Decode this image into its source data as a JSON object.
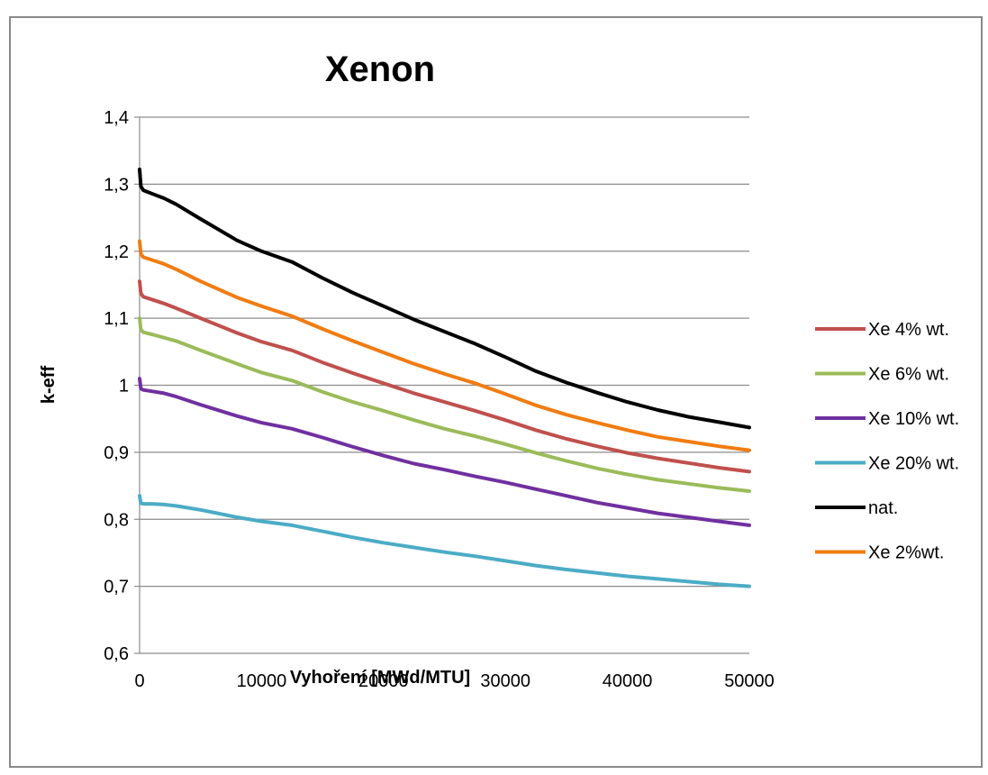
{
  "chart_data": {
    "type": "line",
    "title": "Xenon",
    "xlabel": "Vyhoření [MWd/MTU]",
    "ylabel": "k-eff",
    "xlim": [
      0,
      50000
    ],
    "ylim": [
      0.6,
      1.4
    ],
    "x_ticks": [
      "0",
      "10000",
      "20000",
      "30000",
      "40000",
      "50000"
    ],
    "y_ticks": [
      "0,6",
      "0,7",
      "0,8",
      "0,9",
      "1",
      "1,1",
      "1,2",
      "1,3",
      "1,4"
    ],
    "grid": "horizontal",
    "legend_position": "right",
    "x": [
      0,
      100,
      300,
      1000,
      2000,
      3000,
      5000,
      8000,
      10000,
      12500,
      15000,
      17500,
      20000,
      22500,
      25000,
      27500,
      30000,
      32500,
      35000,
      37500,
      40000,
      42500,
      45000,
      47500,
      50000
    ],
    "series": [
      {
        "name": "Xe 4% wt.",
        "color": "#c0504d",
        "x": [
          0,
          100,
          300,
          1000,
          2000,
          3000,
          5000,
          8000,
          10000,
          12500,
          15000,
          17500,
          20000,
          22500,
          25000,
          27500,
          30000,
          32500,
          35000,
          37500,
          40000,
          42500,
          45000,
          47500,
          50000
        ],
        "values": [
          1.155,
          1.137,
          1.132,
          1.128,
          1.122,
          1.115,
          1.1,
          1.078,
          1.065,
          1.052,
          1.034,
          1.018,
          1.003,
          0.988,
          0.975,
          0.962,
          0.948,
          0.933,
          0.92,
          0.909,
          0.899,
          0.891,
          0.884,
          0.877,
          0.871
        ]
      },
      {
        "name": "Xe 6% wt.",
        "color": "#9bbb59",
        "x": [
          0,
          100,
          300,
          1000,
          2000,
          3000,
          5000,
          8000,
          10000,
          12500,
          15000,
          17500,
          20000,
          22500,
          25000,
          27500,
          30000,
          32500,
          35000,
          37500,
          40000,
          42500,
          45000,
          47500,
          50000
        ],
        "values": [
          1.1,
          1.083,
          1.079,
          1.076,
          1.071,
          1.066,
          1.052,
          1.032,
          1.019,
          1.007,
          0.99,
          0.975,
          0.962,
          0.948,
          0.935,
          0.924,
          0.912,
          0.899,
          0.887,
          0.876,
          0.867,
          0.859,
          0.853,
          0.847,
          0.842
        ]
      },
      {
        "name": "Xe 10% wt.",
        "color": "#7030a0",
        "x": [
          0,
          100,
          300,
          1000,
          2000,
          3000,
          5000,
          8000,
          10000,
          12500,
          15000,
          17500,
          20000,
          22500,
          25000,
          27500,
          30000,
          32500,
          35000,
          37500,
          40000,
          42500,
          45000,
          47500,
          50000
        ],
        "values": [
          1.01,
          0.995,
          0.993,
          0.991,
          0.988,
          0.983,
          0.971,
          0.954,
          0.944,
          0.935,
          0.922,
          0.908,
          0.895,
          0.883,
          0.874,
          0.864,
          0.855,
          0.845,
          0.835,
          0.825,
          0.817,
          0.809,
          0.803,
          0.797,
          0.791
        ]
      },
      {
        "name": "Xe 20% wt.",
        "color": "#4bacc6",
        "x": [
          0,
          100,
          300,
          1000,
          2000,
          3000,
          5000,
          8000,
          10000,
          12500,
          15000,
          17500,
          20000,
          22500,
          25000,
          27500,
          30000,
          32500,
          35000,
          37500,
          40000,
          42500,
          45000,
          47500,
          50000
        ],
        "values": [
          0.835,
          0.824,
          0.823,
          0.823,
          0.822,
          0.82,
          0.814,
          0.803,
          0.797,
          0.791,
          0.782,
          0.773,
          0.765,
          0.758,
          0.751,
          0.745,
          0.738,
          0.731,
          0.725,
          0.72,
          0.715,
          0.711,
          0.707,
          0.703,
          0.7
        ]
      },
      {
        "name": "nat.",
        "color": "#000000",
        "x": [
          0,
          100,
          300,
          1000,
          2000,
          3000,
          5000,
          8000,
          10000,
          12500,
          15000,
          17500,
          20000,
          22500,
          25000,
          27500,
          30000,
          32500,
          35000,
          37500,
          40000,
          42500,
          45000,
          47500,
          50000
        ],
        "values": [
          1.322,
          1.297,
          1.291,
          1.286,
          1.279,
          1.27,
          1.248,
          1.216,
          1.2,
          1.184,
          1.16,
          1.138,
          1.118,
          1.098,
          1.08,
          1.062,
          1.042,
          1.021,
          1.004,
          0.989,
          0.975,
          0.963,
          0.953,
          0.945,
          0.937
        ]
      },
      {
        "name": "Xe 2%wt.",
        "color": "#f07c12",
        "x": [
          0,
          100,
          300,
          1000,
          2000,
          3000,
          5000,
          8000,
          10000,
          12500,
          15000,
          17500,
          20000,
          22500,
          25000,
          27500,
          30000,
          32500,
          35000,
          37500,
          40000,
          42500,
          45000,
          47500,
          50000
        ],
        "values": [
          1.215,
          1.196,
          1.191,
          1.187,
          1.181,
          1.173,
          1.155,
          1.131,
          1.118,
          1.103,
          1.084,
          1.066,
          1.049,
          1.032,
          1.017,
          1.003,
          0.987,
          0.97,
          0.956,
          0.944,
          0.933,
          0.923,
          0.916,
          0.909,
          0.903
        ]
      }
    ]
  }
}
